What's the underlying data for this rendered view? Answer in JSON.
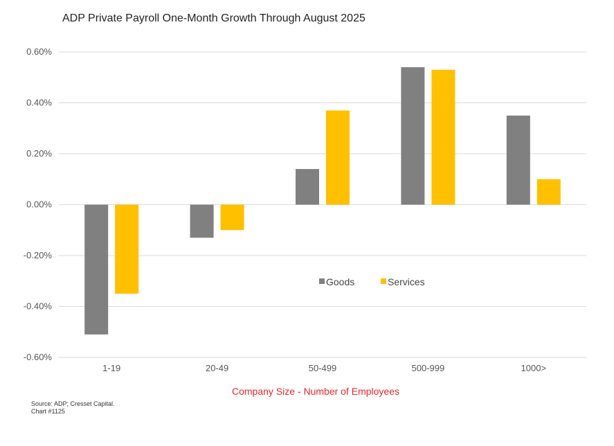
{
  "title": "ADP Private Payroll One-Month Growth Through August 2025",
  "source_line1": "Source: ADP; Cresset Capital.",
  "source_line2": "Chart #1125",
  "colors": {
    "Goods": "#808080",
    "Services": "#ffc000",
    "xlabel": "#e8262b",
    "grid": "#d9d9d9"
  },
  "chart_data": {
    "type": "bar",
    "title": "ADP Private Payroll One-Month Growth Through August 2025",
    "xlabel": "Company Size - Number of Employees",
    "ylabel": "",
    "categories": [
      "1-19",
      "20-49",
      "50-499",
      "500-999",
      "1000>"
    ],
    "series": [
      {
        "name": "Goods",
        "values": [
          -0.51,
          -0.13,
          0.14,
          0.54,
          0.35
        ]
      },
      {
        "name": "Services",
        "values": [
          -0.35,
          -0.1,
          0.37,
          0.53,
          0.1
        ]
      }
    ],
    "ylim": [
      -0.6,
      0.6
    ],
    "yticks": [
      "0.60%",
      "0.40%",
      "0.20%",
      "0.00%",
      "-0.20%",
      "-0.40%",
      "-0.60%"
    ],
    "ytick_values": [
      0.6,
      0.4,
      0.2,
      0.0,
      -0.2,
      -0.4,
      -0.6
    ],
    "grid": true,
    "legend_position": "center"
  }
}
